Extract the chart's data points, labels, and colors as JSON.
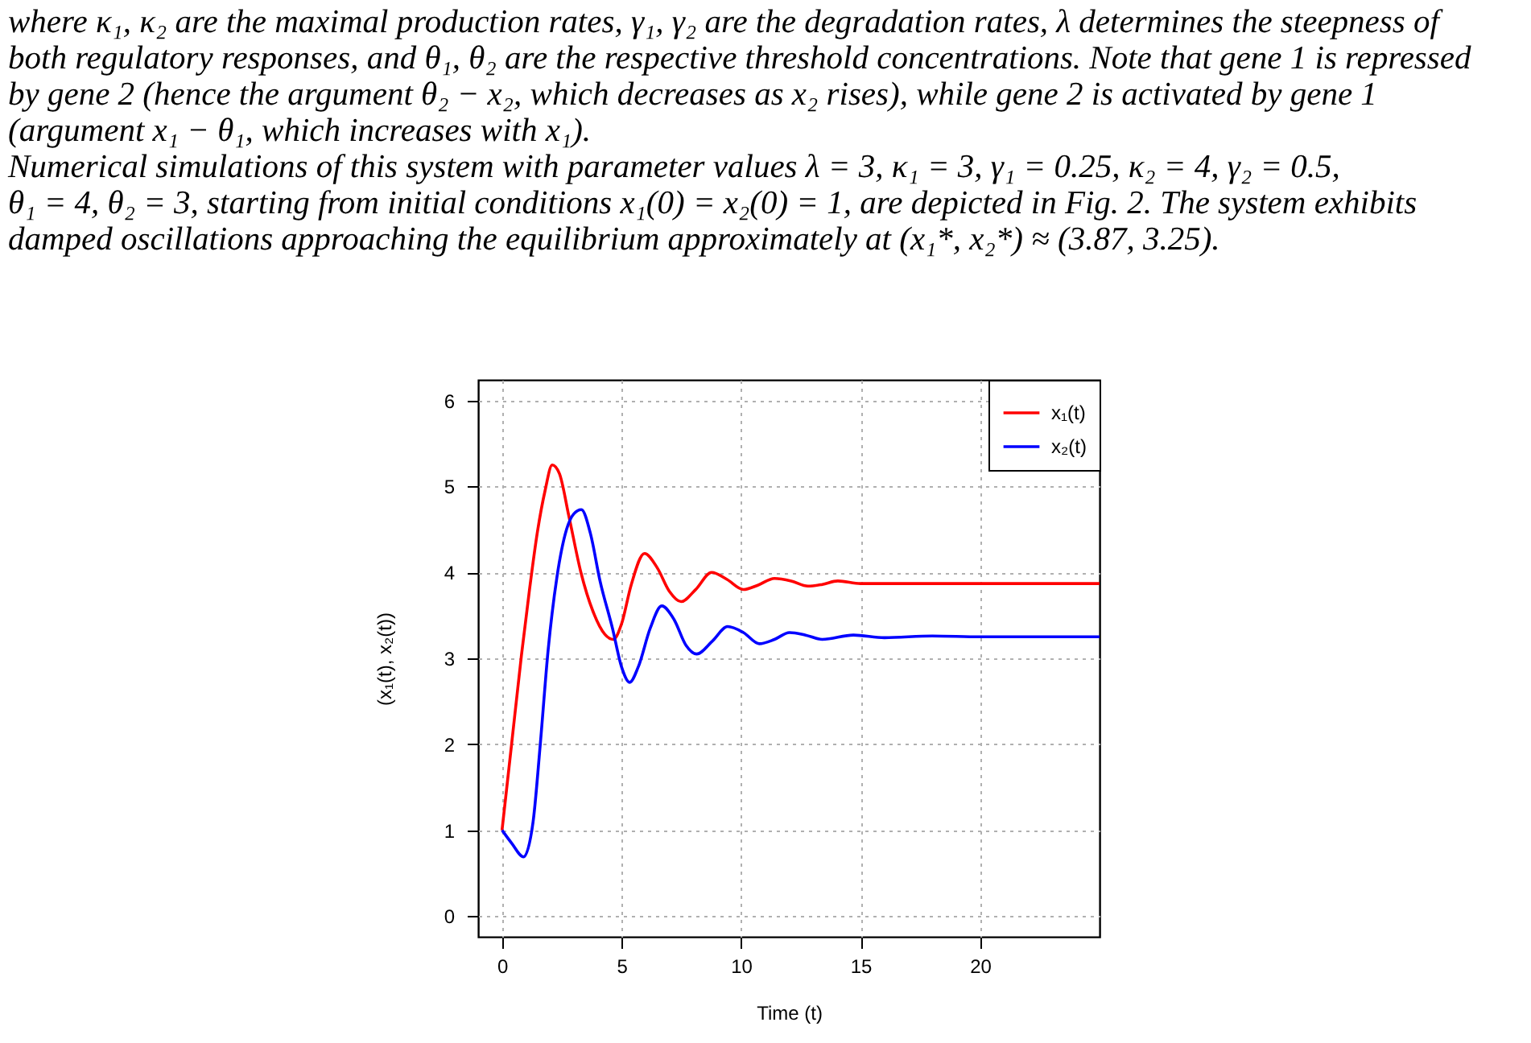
{
  "chart_data": {
    "type": "line",
    "annotations": [
      "where κ₁, κ₂ are the maximal production rates, γ₁, γ₂ are the degradation rates, λ determines the steepness of",
      "both regulatory responses, and θ₁, θ₂ are the respective threshold concentrations. Note that gene 1 is repressed",
      "by gene 2 (hence the argument θ₂ − x₂, which decreases as x₂ rises), while gene 2 is activated by gene 1",
      "(argument x₁ − θ₁, which increases with x₁).",
      "      Numerical simulations of this system with parameter values λ = 3, κ₁ = 3, γ₁ = 0.25, κ₂ = 4, γ₂ = 0.5,",
      "θ₁ = 4, θ₂ = 3, starting from initial conditions x₁(0) = x₂(0) = 1, are depicted in Fig. 2. The system exhibits",
      "damped oscillations approaching the equilibrium approximately at (x₁*, x₂*) ≈ (3.87, 3.25)."
    ],
    "xlabel": "Time (t)",
    "ylabel": "(x₁(t), x₂(t))",
    "xlim": [
      -1,
      25
    ],
    "ylim": [
      -0.24,
      6.24
    ],
    "xticks": [
      0,
      5,
      10,
      15,
      20
    ],
    "yticks": [
      0,
      1,
      2,
      3,
      4,
      5,
      6
    ],
    "grid": true,
    "legend": "top right",
    "line_style": "solid",
    "marker": "none",
    "series": [
      {
        "name": "x₁(t)",
        "color": "#ff0000",
        "x": [
          0,
          0.4,
          0.81,
          1.15,
          1.48,
          1.8,
          2.1,
          2.4,
          2.8,
          3.3,
          3.8,
          4.3,
          4.66,
          5.0,
          5.4,
          5.96,
          6.5,
          7.0,
          7.49,
          8.1,
          8.77,
          9.4,
          10.1,
          10.7,
          11.4,
          12.1,
          12.8,
          13.4,
          14.05,
          15,
          17,
          20,
          25
        ],
        "values": [
          1,
          2.0,
          3.03,
          3.8,
          4.47,
          4.95,
          5.25,
          5.15,
          4.65,
          4.0,
          3.55,
          3.28,
          3.22,
          3.4,
          3.85,
          4.22,
          4.05,
          3.78,
          3.66,
          3.8,
          4.0,
          3.92,
          3.8,
          3.85,
          3.93,
          3.9,
          3.84,
          3.86,
          3.9,
          3.87,
          3.87,
          3.87,
          3.87
        ]
      },
      {
        "name": "x₂(t)",
        "color": "#0000ff",
        "x": [
          0,
          0.4,
          0.9,
          1.3,
          1.6,
          1.93,
          2.3,
          2.7,
          3.0,
          3.32,
          3.7,
          4.1,
          4.62,
          5.0,
          5.34,
          5.7,
          6.2,
          6.68,
          7.2,
          7.7,
          8.14,
          8.8,
          9.44,
          10.1,
          10.76,
          11.4,
          12.03,
          12.7,
          13.4,
          14.7,
          16,
          18,
          20,
          25
        ],
        "values": [
          1,
          0.85,
          0.69,
          1.1,
          2.0,
          3.1,
          3.95,
          4.5,
          4.68,
          4.73,
          4.45,
          3.9,
          3.35,
          2.9,
          2.72,
          2.9,
          3.35,
          3.61,
          3.45,
          3.15,
          3.05,
          3.2,
          3.37,
          3.3,
          3.17,
          3.22,
          3.3,
          3.27,
          3.22,
          3.27,
          3.24,
          3.26,
          3.25,
          3.25
        ]
      }
    ]
  }
}
